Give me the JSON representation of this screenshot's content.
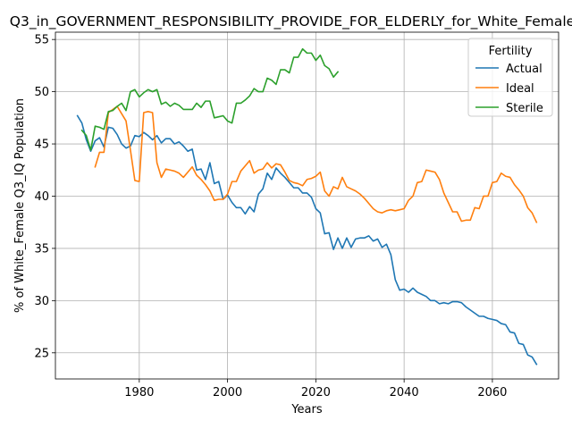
{
  "chart_data": {
    "type": "line",
    "title": "Q3_in_GOVERNMENT_RESPONSIBILITY_PROVIDE_FOR_ELDERLY_for_White_Female",
    "xlabel": "Years",
    "ylabel": "% of White_Female Q3_IQ Population",
    "xlim": [
      1961,
      2075
    ],
    "ylim": [
      22.5,
      55.7
    ],
    "xticks": [
      1980,
      2000,
      2020,
      2040,
      2060
    ],
    "yticks": [
      25,
      30,
      35,
      40,
      45,
      50,
      55
    ],
    "grid": true,
    "legend": {
      "title": "Fertility",
      "placement": "top-right"
    },
    "series": [
      {
        "name": "Actual",
        "color": "#1f77b4",
        "x": [
          1966,
          1967,
          1968,
          1969,
          1970,
          1971,
          1972,
          1973,
          1974,
          1975,
          1976,
          1977,
          1978,
          1979,
          1980,
          1981,
          1982,
          1983,
          1984,
          1985,
          1986,
          1987,
          1988,
          1989,
          1990,
          1991,
          1992,
          1993,
          1994,
          1995,
          1996,
          1997,
          1998,
          1999,
          2000,
          2001,
          2002,
          2003,
          2004,
          2005,
          2006,
          2007,
          2008,
          2009,
          2010,
          2011,
          2012,
          2013,
          2014,
          2015,
          2016,
          2017,
          2018,
          2019,
          2020,
          2021,
          2022,
          2023,
          2024,
          2025,
          2026,
          2027,
          2028,
          2029,
          2030,
          2031,
          2032,
          2033,
          2034,
          2035,
          2036,
          2037,
          2038,
          2039,
          2040,
          2041,
          2042,
          2043,
          2044,
          2045,
          2046,
          2047,
          2048,
          2049,
          2050,
          2051,
          2052,
          2053,
          2054,
          2055,
          2056,
          2057,
          2058,
          2059,
          2060,
          2061,
          2062,
          2063,
          2064,
          2065,
          2066,
          2067,
          2068,
          2069,
          2070
        ],
        "values": [
          47.7,
          47.0,
          45.4,
          44.3,
          45.3,
          45.6,
          44.7,
          46.6,
          46.5,
          45.9,
          45.0,
          44.6,
          44.8,
          45.8,
          45.7,
          46.1,
          45.8,
          45.4,
          45.8,
          45.1,
          45.5,
          45.5,
          45.0,
          45.2,
          44.8,
          44.3,
          44.5,
          42.5,
          42.6,
          41.6,
          43.2,
          41.2,
          41.4,
          39.7,
          40.1,
          39.4,
          38.9,
          38.9,
          38.3,
          39.0,
          38.5,
          40.2,
          40.7,
          42.2,
          41.6,
          42.7,
          42.2,
          41.8,
          41.3,
          40.8,
          40.8,
          40.3,
          40.3,
          39.9,
          38.8,
          38.4,
          36.4,
          36.5,
          34.9,
          36.0,
          35.0,
          36.0,
          35.1,
          35.9,
          36.0,
          36.0,
          36.2,
          35.7,
          35.9,
          35.1,
          35.4,
          34.4,
          32.0,
          31.0,
          31.1,
          30.8,
          31.2,
          30.8,
          30.6,
          30.4,
          30.0,
          30.0,
          29.7,
          29.8,
          29.7,
          29.9,
          29.9,
          29.8,
          29.4,
          29.1,
          28.8,
          28.5,
          28.5,
          28.3,
          28.2,
          28.1,
          27.8,
          27.7,
          27.0,
          26.9,
          25.9,
          25.8,
          24.8,
          24.6,
          23.9
        ]
      },
      {
        "name": "Ideal",
        "color": "#ff7f0e",
        "x": [
          1970,
          1971,
          1972,
          1973,
          1974,
          1975,
          1976,
          1977,
          1978,
          1979,
          1980,
          1981,
          1982,
          1983,
          1984,
          1985,
          1986,
          1987,
          1988,
          1989,
          1990,
          1991,
          1992,
          1993,
          1994,
          1995,
          1996,
          1997,
          1998,
          1999,
          2000,
          2001,
          2002,
          2003,
          2004,
          2005,
          2006,
          2007,
          2008,
          2009,
          2010,
          2011,
          2012,
          2013,
          2014,
          2015,
          2016,
          2017,
          2018,
          2019,
          2020,
          2021,
          2022,
          2023,
          2024,
          2025,
          2026,
          2027,
          2028,
          2029,
          2030,
          2031,
          2032,
          2033,
          2034,
          2035,
          2036,
          2037,
          2038,
          2039,
          2040,
          2041,
          2042,
          2043,
          2044,
          2045,
          2046,
          2047,
          2048,
          2049,
          2050,
          2051,
          2052,
          2053,
          2054,
          2055,
          2056,
          2057,
          2058,
          2059,
          2060,
          2061,
          2062,
          2063,
          2064,
          2065,
          2066,
          2067,
          2068,
          2069,
          2070
        ],
        "values": [
          42.8,
          44.2,
          44.2,
          48.0,
          48.3,
          48.6,
          47.9,
          47.2,
          44.4,
          41.5,
          41.4,
          48.0,
          48.1,
          48.0,
          43.2,
          41.8,
          42.6,
          42.5,
          42.4,
          42.2,
          41.8,
          42.3,
          42.8,
          42.0,
          41.6,
          41.1,
          40.5,
          39.6,
          39.7,
          39.7,
          40.2,
          41.4,
          41.4,
          42.4,
          42.9,
          43.4,
          42.2,
          42.5,
          42.6,
          43.2,
          42.7,
          43.1,
          43.0,
          42.3,
          41.5,
          41.3,
          41.2,
          41.0,
          41.6,
          41.7,
          41.9,
          42.3,
          40.5,
          40.0,
          40.9,
          40.7,
          41.8,
          40.9,
          40.7,
          40.5,
          40.2,
          39.8,
          39.3,
          38.8,
          38.5,
          38.4,
          38.6,
          38.7,
          38.6,
          38.7,
          38.8,
          39.6,
          40.0,
          41.3,
          41.4,
          42.5,
          42.4,
          42.3,
          41.6,
          40.3,
          39.4,
          38.5,
          38.5,
          37.6,
          37.7,
          37.7,
          38.9,
          38.8,
          40.0,
          40.0,
          41.3,
          41.4,
          42.2,
          41.9,
          41.8,
          41.1,
          40.6,
          40.0,
          38.9,
          38.4,
          37.5
        ]
      },
      {
        "name": "Sterile",
        "color": "#2ca02c",
        "x": [
          1967,
          1968,
          1969,
          1970,
          1971,
          1972,
          1973,
          1974,
          1975,
          1976,
          1977,
          1978,
          1979,
          1980,
          1981,
          1982,
          1983,
          1984,
          1985,
          1986,
          1987,
          1988,
          1989,
          1990,
          1991,
          1992,
          1993,
          1994,
          1995,
          1996,
          1997,
          1998,
          1999,
          2000,
          2001,
          2002,
          2003,
          2004,
          2005,
          2006,
          2007,
          2008,
          2009,
          2010,
          2011,
          2012,
          2013,
          2014,
          2015,
          2016,
          2017,
          2018,
          2019,
          2020,
          2021,
          2022,
          2023,
          2024,
          2025
        ],
        "values": [
          46.3,
          45.8,
          44.4,
          46.7,
          46.6,
          46.4,
          48.1,
          48.2,
          48.6,
          48.9,
          48.2,
          50.0,
          50.2,
          49.5,
          49.9,
          50.2,
          50.0,
          50.2,
          48.8,
          49.0,
          48.6,
          48.9,
          48.7,
          48.3,
          48.3,
          48.3,
          48.9,
          48.5,
          49.1,
          49.1,
          47.5,
          47.6,
          47.7,
          47.2,
          47.0,
          48.9,
          48.9,
          49.2,
          49.6,
          50.3,
          50.0,
          50.0,
          51.3,
          51.1,
          50.7,
          52.1,
          52.1,
          51.8,
          53.3,
          53.3,
          54.1,
          53.7,
          53.7,
          53.0,
          53.5,
          52.5,
          52.2,
          51.4,
          51.9
        ]
      }
    ]
  }
}
